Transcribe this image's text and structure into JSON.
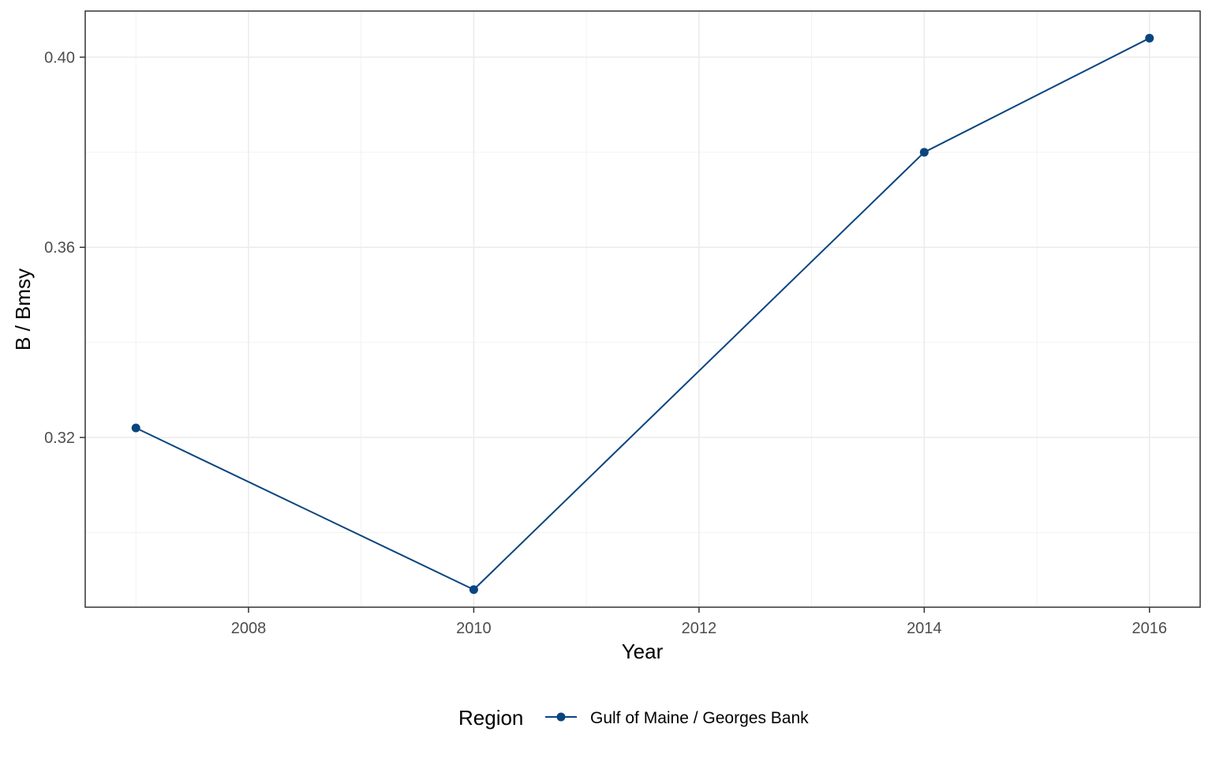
{
  "chart_data": {
    "type": "line",
    "title": "",
    "xlabel": "Year",
    "ylabel": "B / Bmsy",
    "xlim": [
      2006.55,
      2016.45
    ],
    "ylim": [
      0.2843,
      0.4097
    ],
    "x_ticks": [
      2008,
      2010,
      2012,
      2014,
      2016
    ],
    "x_tick_labels": [
      "2008",
      "2010",
      "2012",
      "2014",
      "2016"
    ],
    "y_ticks": [
      0.32,
      0.36,
      0.4
    ],
    "y_tick_labels": [
      "0.32",
      "0.36",
      "0.40"
    ],
    "grid": true,
    "legend": {
      "title": "Region",
      "position": "bottom"
    },
    "series": [
      {
        "name": "Gulf of Maine / Georges Bank",
        "color": "#08457e",
        "x": [
          2007,
          2010,
          2014,
          2016
        ],
        "y": [
          0.322,
          0.288,
          0.38,
          0.404
        ]
      }
    ]
  }
}
